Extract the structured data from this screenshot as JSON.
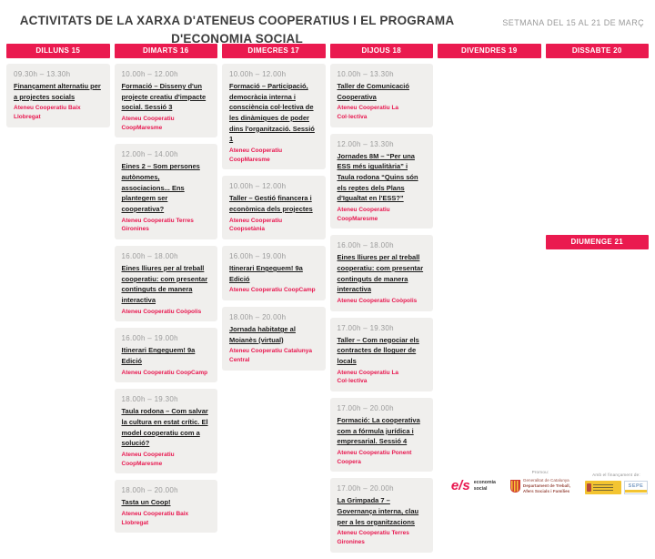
{
  "header": {
    "title": "ACTIVITATS DE LA XARXA D'ATENEUS COOPERATIUS I EL PROGRAMA D'ECONOMIA SOCIAL",
    "week_label": "SETMANA DEL 15 AL 21 DE MARÇ"
  },
  "colors": {
    "accent": "#ea1a4f",
    "card_background": "#f0efed",
    "time_gray": "#9b9b9b",
    "organizer_red": "#e8174f"
  },
  "columns": [
    {
      "label": "DILLUNS 15",
      "events": [
        {
          "time": "09.30h – 13.30h",
          "title": "Finançament alternatiu per a projectes socials",
          "organizer": "Ateneu Cooperatiu Baix Llobregat"
        }
      ]
    },
    {
      "label": "DIMARTS 16",
      "events": [
        {
          "time": "10.00h – 12.00h",
          "title": "Formació – Disseny d'un projecte creatiu d'impacte social. Sessió 3",
          "organizer": "Ateneu Cooperatiu CoopMaresme"
        },
        {
          "time": "12.00h – 14.00h",
          "title": "Eines 2 – Som persones autònomes, associacions... Ens plantegem ser cooperativa?",
          "organizer": "Ateneu Cooperatiu Terres Gironines"
        },
        {
          "time": "16.00h – 18.00h",
          "title": "Eines lliures per al treball cooperatiu: com presentar continguts de manera interactiva",
          "organizer": "Ateneu Cooperatiu Coòpolis"
        },
        {
          "time": "16.00h – 19.00h",
          "title": "Itinerari Engeguem! 9a Edició",
          "organizer": "Ateneu Cooperatiu CoopCamp"
        },
        {
          "time": "18.00h – 19.30h",
          "title": "Taula rodona – Com salvar la cultura en estat crític. El model cooperatiu com a solució?",
          "organizer": "Ateneu Cooperatiu CoopMaresme"
        },
        {
          "time": "18.00h – 20.00h",
          "title": "Tasta un Coop!",
          "organizer": "Ateneu Cooperatiu Baix Llobregat"
        }
      ]
    },
    {
      "label": "DIMECRES 17",
      "events": [
        {
          "time": "10.00h – 12.00h",
          "title": "Formació – Participació, democràcia interna i consciència col·lectiva de les dinàmiques de poder dins l'organització. Sessió 1",
          "organizer": "Ateneu Cooperatiu CoopMaresme"
        },
        {
          "time": "10.00h – 12.00h",
          "title": "Taller – Gestió financera i econòmica dels projectes",
          "organizer": "Ateneu Cooperatiu Coopsetània"
        },
        {
          "time": "16.00h – 19.00h",
          "title": "Itinerari Engeguem! 9a Edició",
          "organizer": "Ateneu Cooperatiu CoopCamp"
        },
        {
          "time": "18.00h – 20.00h",
          "title": "Jornada habitatge al Moianès (virtual)",
          "organizer": "Ateneu Cooperatiu Catalunya Central"
        }
      ]
    },
    {
      "label": "DIJOUS 18",
      "events": [
        {
          "time": "10.00h – 13.30h",
          "title": "Taller de Comunicació Cooperativa",
          "organizer": "Ateneu Cooperatiu La Col·lectiva"
        },
        {
          "time": "12.00h – 13.30h",
          "title": "Jornades 8M – “Per una ESS més igualitària” i Taula rodona “Quins són els reptes dels Plans d'Igualtat en l'ESS?”",
          "organizer": "Ateneu Cooperatiu CoopMaresme"
        },
        {
          "time": "16.00h – 18.00h",
          "title": "Eines lliures per al treball cooperatiu: com presentar continguts de manera interactiva",
          "organizer": "Ateneu Cooperatiu Coòpolis"
        },
        {
          "time": "17.00h – 19.30h",
          "title": "Taller – Com negociar els contractes de lloguer de locals",
          "organizer": "Ateneu Cooperatiu La Col·lectiva"
        },
        {
          "time": "17.00h – 20.00h",
          "title": "Formació: La cooperativa com a fórmula jurídica i empresarial. Sessió 4",
          "organizer": "Ateneu Cooperatiu Ponent Coopera"
        },
        {
          "time": "17.00h – 20.00h",
          "title": "La Grimpada 7 – Governança interna, clau per a les organitzacions",
          "organizer": "Ateneu Cooperatiu Terres Gironines"
        }
      ]
    },
    {
      "label": "DIVENDRES 19",
      "events": []
    },
    {
      "label": "DISSABTE 20",
      "events": [],
      "floating_header": "DIUMENGE 21"
    }
  ],
  "footer": {
    "economia_social": {
      "symbol": "e/s",
      "line1": "economia",
      "line2": "social"
    },
    "promou_label": "Promou:",
    "generalitat": {
      "line1": "Generalitat de Catalunya",
      "line2": "Departament de Treball,",
      "line3": "Afers Socials i Famílies"
    },
    "financament_label": "Amb el finançament de:",
    "sepe_label": "SEPE"
  }
}
